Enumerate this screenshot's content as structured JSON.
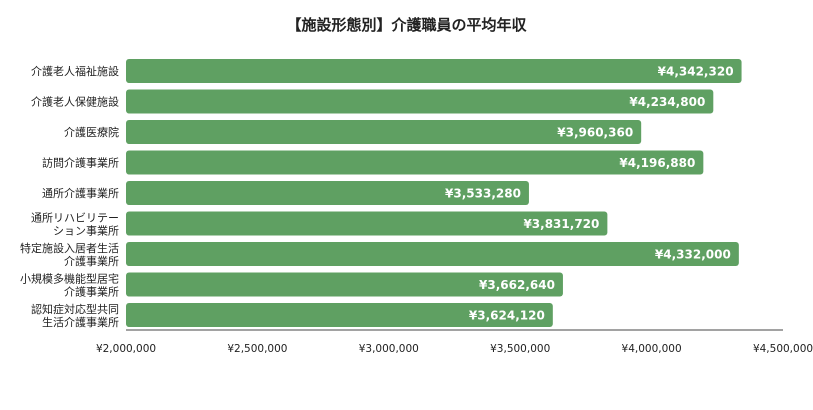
{
  "colors": {
    "bar": "#5fa062",
    "axis": "#444444",
    "text": "#222222",
    "data_label": "#ffffff"
  },
  "chart_data": {
    "type": "bar",
    "orientation": "horizontal",
    "title": "【施設形態別】介護職員の平均年収",
    "xlabel": "",
    "ylabel": "",
    "grid": false,
    "legend": "none",
    "xlim": [
      2000000,
      4500000
    ],
    "x_ticks": [
      2000000,
      2500000,
      3000000,
      3500000,
      4000000,
      4500000
    ],
    "x_tick_labels": [
      "¥2,000,000",
      "¥2,500,000",
      "¥3,000,000",
      "¥3,500,000",
      "¥4,000,000",
      "¥4,500,000"
    ],
    "categories": [
      [
        "介護老人福祉施設"
      ],
      [
        "介護老人保健施設"
      ],
      [
        "介護医療院"
      ],
      [
        "訪問介護事業所"
      ],
      [
        "通所介護事業所"
      ],
      [
        "通所リハビリテー",
        "ション事業所"
      ],
      [
        "特定施設入居者生活",
        "介護事業所"
      ],
      [
        "小規模多機能型居宅",
        "介護事業所"
      ],
      [
        "認知症対応型共同",
        "生活介護事業所"
      ]
    ],
    "values": [
      4342320,
      4234800,
      3960360,
      4196880,
      3533280,
      3831720,
      4332000,
      3662640,
      3624120
    ],
    "data_labels": [
      "¥4,342,320",
      "¥4,234,800",
      "¥3,960,360",
      "¥4,196,880",
      "¥3,533,280",
      "¥3,831,720",
      "¥4,332,000",
      "¥3,662,640",
      "¥3,624,120"
    ]
  }
}
